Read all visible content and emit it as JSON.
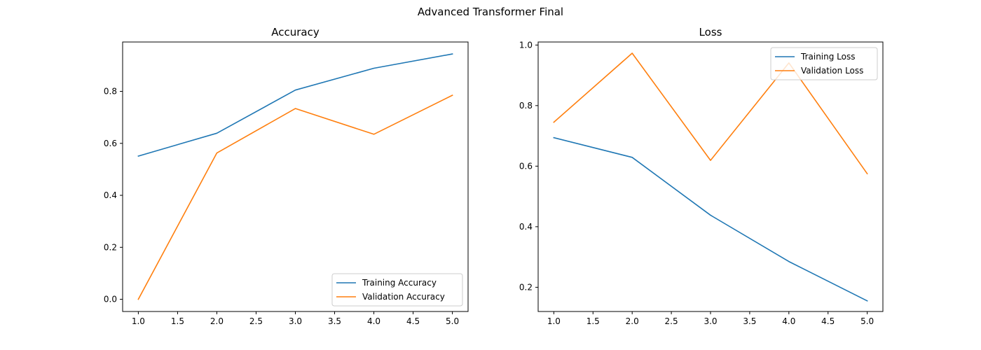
{
  "figure": {
    "title": "Advanced Transformer Final"
  },
  "chart_data": [
    {
      "type": "line",
      "title": "Accuracy",
      "xlabel": "",
      "ylabel": "",
      "x": [
        1,
        2,
        3,
        4,
        5
      ],
      "series": [
        {
          "name": "Training Accuracy",
          "color": "#1f77b4",
          "values": [
            0.551,
            0.639,
            0.805,
            0.889,
            0.944
          ]
        },
        {
          "name": "Validation Accuracy",
          "color": "#ff7f0e",
          "values": [
            0.0,
            0.563,
            0.734,
            0.635,
            0.785
          ]
        }
      ],
      "xlim": [
        0.8,
        5.2
      ],
      "ylim": [
        -0.047,
        0.99
      ],
      "xticks": [
        1.0,
        1.5,
        2.0,
        2.5,
        3.0,
        3.5,
        4.0,
        4.5,
        5.0
      ],
      "xtick_labels": [
        "1.0",
        "1.5",
        "2.0",
        "2.5",
        "3.0",
        "3.5",
        "4.0",
        "4.5",
        "5.0"
      ],
      "yticks": [
        0.0,
        0.2,
        0.4,
        0.6,
        0.8
      ],
      "ytick_labels": [
        "0.0",
        "0.2",
        "0.4",
        "0.6",
        "0.8"
      ],
      "legend": "lower right",
      "grid": false
    },
    {
      "type": "line",
      "title": "Loss",
      "xlabel": "",
      "ylabel": "",
      "x": [
        1,
        2,
        3,
        4,
        5
      ],
      "series": [
        {
          "name": "Training Loss",
          "color": "#1f77b4",
          "values": [
            0.694,
            0.629,
            0.438,
            0.285,
            0.155
          ]
        },
        {
          "name": "Validation Loss",
          "color": "#ff7f0e",
          "values": [
            0.745,
            0.973,
            0.619,
            0.941,
            0.575
          ]
        }
      ],
      "xlim": [
        0.8,
        5.2
      ],
      "ylim": [
        0.12,
        1.01
      ],
      "xticks": [
        1.0,
        1.5,
        2.0,
        2.5,
        3.0,
        3.5,
        4.0,
        4.5,
        5.0
      ],
      "xtick_labels": [
        "1.0",
        "1.5",
        "2.0",
        "2.5",
        "3.0",
        "3.5",
        "4.0",
        "4.5",
        "5.0"
      ],
      "yticks": [
        0.2,
        0.4,
        0.6,
        0.8,
        1.0
      ],
      "ytick_labels": [
        "0.2",
        "0.4",
        "0.6",
        "0.8",
        "1.0"
      ],
      "legend": "upper right",
      "grid": false
    }
  ]
}
